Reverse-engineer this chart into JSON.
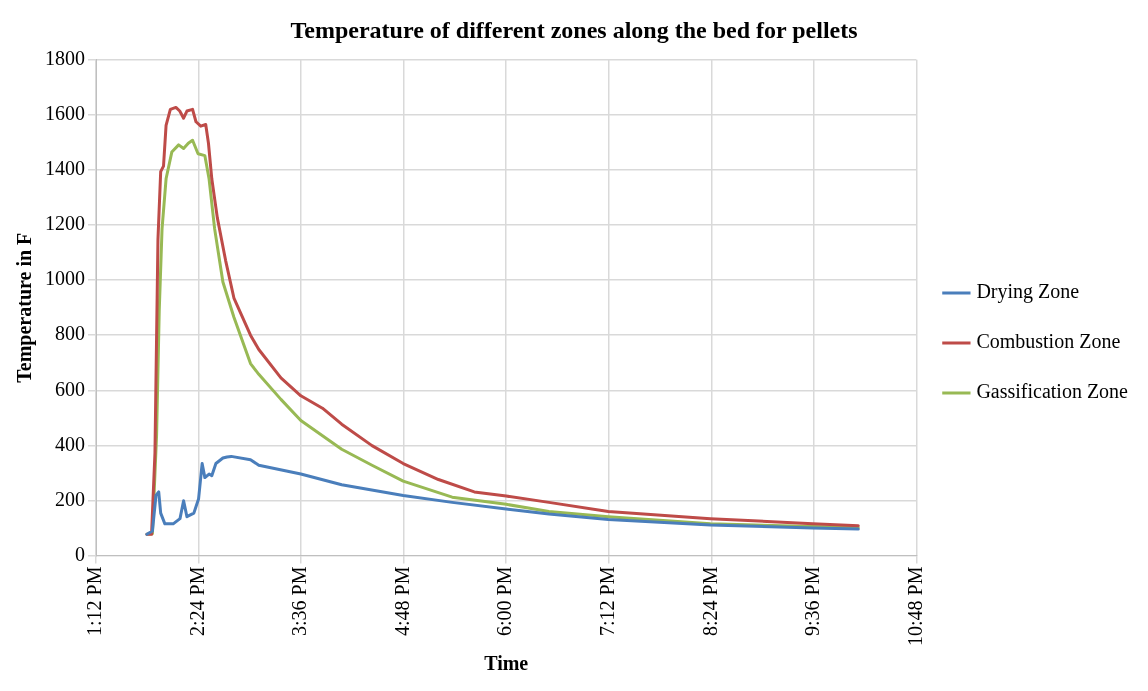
{
  "chart_data": {
    "type": "line",
    "title": "Temperature of different zones along the bed for pellets",
    "xlabel": "Time",
    "ylabel": "Temperature in F",
    "xlim": [
      13.2,
      22.8
    ],
    "xticks": [
      {
        "value": 13.2,
        "label": "1:12 PM"
      },
      {
        "value": 14.4,
        "label": "2:24 PM"
      },
      {
        "value": 15.6,
        "label": "3:36 PM"
      },
      {
        "value": 16.8,
        "label": "4:48 PM"
      },
      {
        "value": 18,
        "label": "6:00 PM"
      },
      {
        "value": 19.2,
        "label": "7:12 PM"
      },
      {
        "value": 20.4,
        "label": "8:24 PM"
      },
      {
        "value": 21.6,
        "label": "9:36 PM"
      },
      {
        "value": 22.8,
        "label": "10:48 PM"
      }
    ],
    "ylim": [
      0,
      1800
    ],
    "yticks": [
      0,
      200,
      400,
      600,
      800,
      1000,
      1200,
      1400,
      1600,
      1800
    ],
    "grid": true,
    "legend": "right",
    "marker": "none",
    "line_style": "solid",
    "series": [
      {
        "name": "Drying Zone",
        "color": "#4a7ebb",
        "x": [
          13.796,
          13.86,
          13.902,
          13.934,
          13.957,
          14.006,
          14.103,
          14.183,
          14.225,
          14.264,
          14.345,
          14.4,
          14.442,
          14.474,
          14.523,
          14.555,
          14.603,
          14.685,
          14.733,
          14.782,
          15.008,
          15.105,
          15.597,
          16.075,
          16.795,
          17.368,
          18.0,
          18.5,
          19.195,
          20.39,
          21.587,
          22.12
        ],
        "values": [
          77,
          89,
          218,
          231,
          154,
          115,
          115,
          134,
          199,
          141,
          154,
          205,
          334,
          283,
          296,
          290,
          334,
          354,
          358,
          360,
          348,
          328,
          296,
          257,
          218,
          193,
          169,
          151,
          131,
          111,
          100,
          96
        ]
      },
      {
        "name": "Combustion Zone",
        "color": "#be4b48",
        "x": [
          13.796,
          13.85,
          13.89,
          13.925,
          13.957,
          13.99,
          14.02,
          14.07,
          14.135,
          14.18,
          14.225,
          14.264,
          14.33,
          14.37,
          14.426,
          14.484,
          14.516,
          14.555,
          14.62,
          14.717,
          14.814,
          15.008,
          15.105,
          15.364,
          15.597,
          15.85,
          16.075,
          16.43,
          16.795,
          17.207,
          17.627,
          18.0,
          18.5,
          19.195,
          20.39,
          21.587,
          22.12
        ],
        "values": [
          77,
          77,
          373,
          1148,
          1394,
          1414,
          1562,
          1620,
          1627,
          1614,
          1588,
          1614,
          1620,
          1575,
          1559,
          1565,
          1497,
          1368,
          1226,
          1071,
          935,
          800,
          748,
          645,
          580,
          535,
          477,
          399,
          334,
          276,
          231,
          216,
          193,
          160,
          134,
          115,
          108
        ]
      },
      {
        "name": "Gassification Zone",
        "color": "#98b954",
        "x": [
          13.796,
          13.86,
          13.909,
          13.94,
          13.973,
          14.02,
          14.087,
          14.167,
          14.225,
          14.28,
          14.33,
          14.394,
          14.474,
          14.523,
          14.588,
          14.685,
          14.814,
          15.008,
          15.105,
          15.364,
          15.597,
          16.075,
          16.43,
          16.795,
          17.368,
          18.0,
          18.5,
          19.195,
          20.39,
          21.587,
          22.12
        ],
        "values": [
          77,
          79,
          438,
          890,
          1187,
          1368,
          1465,
          1491,
          1478,
          1497,
          1508,
          1459,
          1452,
          1368,
          1187,
          993,
          865,
          697,
          658,
          567,
          490,
          386,
          328,
          270,
          212,
          186,
          160,
          141,
          115,
          105,
          102
        ]
      }
    ]
  }
}
